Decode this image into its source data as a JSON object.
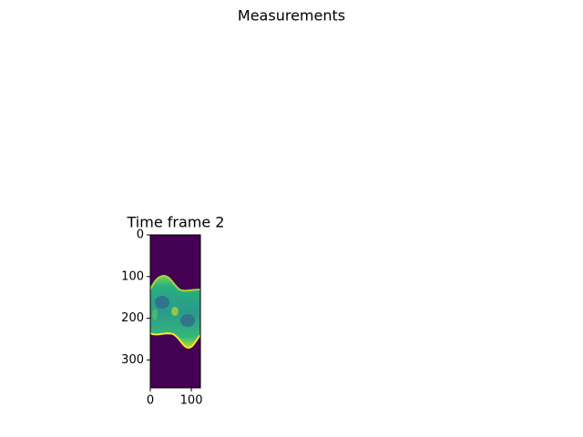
{
  "chart_data": {
    "type": "image",
    "suptitle": "Measurements",
    "title": "Time frame 2",
    "xlim": [
      0,
      122
    ],
    "ylim": [
      367,
      0
    ],
    "xticks": [
      0,
      100
    ],
    "yticks": [
      0,
      100,
      200,
      300
    ]
  }
}
